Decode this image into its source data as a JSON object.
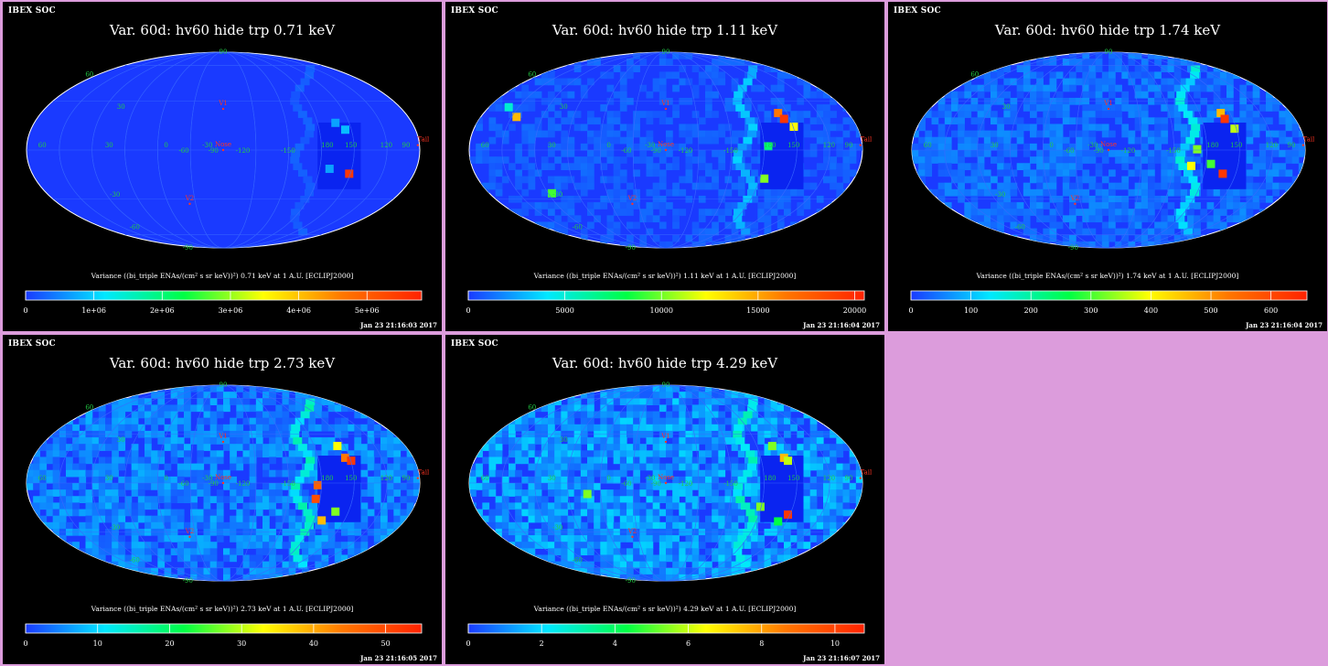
{
  "colors": {
    "background": "#dc9cdc",
    "panel": "#000000",
    "map_base": "#1a3aff",
    "grid": "#3a6aff",
    "grid_label": "#22cc44",
    "marker": "#ff3322",
    "colormap": [
      "#1a3aff",
      "#00e8ff",
      "#00ff44",
      "#ffff00",
      "#ff7700",
      "#ff2200"
    ]
  },
  "chart_data": [
    {
      "type": "heatmap",
      "header": "IBEX SOC",
      "title": "Var. 60d: hv60 hide trp 0.71 keV",
      "colorbar_label": "Variance ((bi_triple ENAs/(cm² s sr keV))²) 0.71 keV at 1 A.U. [ECLIPJ2000]",
      "colorbar_range": [
        0,
        5800000
      ],
      "colorbar_ticks": [
        "0",
        "1e+06",
        "2e+06",
        "3e+06",
        "4e+06",
        "5e+06"
      ],
      "timestamp": "Jan 23 21:16:03 2017",
      "labels": {
        "lon": [
          "60",
          "30",
          "0",
          "-30",
          "-60",
          "-90",
          "-120",
          "-150",
          "180",
          "150",
          "120",
          "90"
        ],
        "lat": [
          "60",
          "30",
          "-30",
          "-60",
          "-90"
        ],
        "north": "90",
        "markers": [
          "V1",
          "Nose",
          "V2",
          "Tail"
        ]
      }
    },
    {
      "type": "heatmap",
      "header": "IBEX SOC",
      "title": "Var. 60d: hv60 hide trp 1.11 keV",
      "colorbar_label": "Variance ((bi_triple ENAs/(cm² s sr keV))²) 1.11 keV at 1 A.U. [ECLIPJ2000]",
      "colorbar_range": [
        0,
        20500
      ],
      "colorbar_ticks": [
        "0",
        "5000",
        "10000",
        "15000",
        "20000"
      ],
      "timestamp": "Jan 23 21:16:04 2017",
      "labels": {
        "lon": [
          "60",
          "30",
          "0",
          "-30",
          "-60",
          "-90",
          "-120",
          "-150",
          "180",
          "150",
          "120",
          "90"
        ],
        "lat": [
          "60",
          "30",
          "-30",
          "-60",
          "-90"
        ],
        "north": "90",
        "markers": [
          "V1",
          "Nose",
          "V2",
          "Tail"
        ]
      }
    },
    {
      "type": "heatmap",
      "header": "IBEX SOC",
      "title": "Var. 60d: hv60 hide trp 1.74 keV",
      "colorbar_label": "Variance ((bi_triple ENAs/(cm² s sr keV))²) 1.74 keV at 1 A.U. [ECLIPJ2000]",
      "colorbar_range": [
        0,
        660
      ],
      "colorbar_ticks": [
        "0",
        "100",
        "200",
        "300",
        "400",
        "500",
        "600"
      ],
      "timestamp": "Jan 23 21:16:04 2017",
      "labels": {
        "lon": [
          "60",
          "30",
          "0",
          "-30",
          "-60",
          "-90",
          "-120",
          "-150",
          "180",
          "150",
          "120",
          "90"
        ],
        "lat": [
          "60",
          "30",
          "-30",
          "-60",
          "-90"
        ],
        "north": "90",
        "markers": [
          "V1",
          "Nose",
          "V2",
          "Tail"
        ]
      }
    },
    {
      "type": "heatmap",
      "header": "IBEX SOC",
      "title": "Var. 60d: hv60 hide trp 2.73 keV",
      "colorbar_label": "Variance ((bi_triple ENAs/(cm² s sr keV))²) 2.73 keV at 1 A.U. [ECLIPJ2000]",
      "colorbar_range": [
        0,
        55
      ],
      "colorbar_ticks": [
        "0",
        "10",
        "20",
        "30",
        "40",
        "50"
      ],
      "timestamp": "Jan 23 21:16:05 2017",
      "labels": {
        "lon": [
          "60",
          "30",
          "0",
          "-30",
          "-60",
          "-90",
          "-120",
          "-150",
          "180",
          "150",
          "120",
          "90"
        ],
        "lat": [
          "60",
          "30",
          "-30",
          "-60",
          "-90"
        ],
        "north": "90",
        "markers": [
          "V1",
          "Nose",
          "V2",
          "Tail"
        ]
      }
    },
    {
      "type": "heatmap",
      "header": "IBEX SOC",
      "title": "Var. 60d: hv60 hide trp 4.29 keV",
      "colorbar_label": "Variance ((bi_triple ENAs/(cm² s sr keV))²) 4.29 keV at 1 A.U. [ECLIPJ2000]",
      "colorbar_range": [
        0,
        10.8
      ],
      "colorbar_ticks": [
        "0",
        "2",
        "4",
        "6",
        "8",
        "10"
      ],
      "timestamp": "Jan 23 21:16:07 2017",
      "labels": {
        "lon": [
          "60",
          "30",
          "0",
          "-30",
          "-60",
          "-90",
          "-120",
          "-150",
          "180",
          "150",
          "120",
          "90"
        ],
        "lat": [
          "60",
          "30",
          "-30",
          "-60",
          "-90"
        ],
        "north": "90",
        "markers": [
          "V1",
          "Nose",
          "V2",
          "Tail"
        ]
      }
    }
  ]
}
